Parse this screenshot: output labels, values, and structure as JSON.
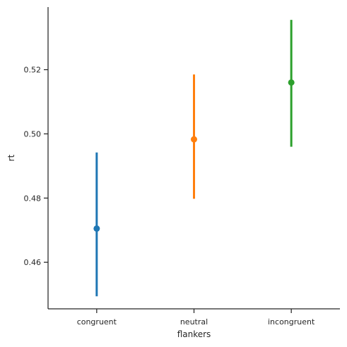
{
  "chart_data": {
    "type": "point",
    "title": "",
    "xlabel": "flankers",
    "ylabel": "rt",
    "categories": [
      "congruent",
      "neutral",
      "incongruent"
    ],
    "values": [
      0.4705,
      0.4983,
      0.516
    ],
    "ci_low": [
      0.4494,
      0.4798,
      0.496
    ],
    "ci_high": [
      0.4942,
      0.5185,
      0.5355
    ],
    "colors": [
      "#1f77b4",
      "#ff7f0e",
      "#2ca02c"
    ],
    "ylim": [
      0.4455,
      0.5395
    ],
    "yticks": [
      0.46,
      0.48,
      0.5,
      0.52
    ],
    "ytick_labels": [
      "0.46",
      "0.48",
      "0.50",
      "0.52"
    ],
    "grid": false,
    "legend": "none"
  }
}
